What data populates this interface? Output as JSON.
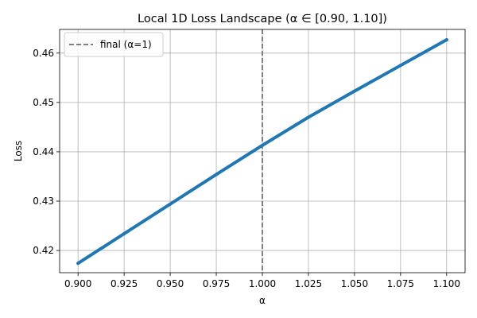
{
  "chart_data": {
    "type": "line",
    "title": "Local 1D Loss Landscape (α ∈ [0.90, 1.10])",
    "xlabel": "α",
    "ylabel": "Loss",
    "xlim": [
      0.89,
      1.11
    ],
    "ylim": [
      0.4155,
      0.4648
    ],
    "grid": true,
    "legend_position": "top-left",
    "x_ticks": [
      0.9,
      0.925,
      0.95,
      0.975,
      1.0,
      1.025,
      1.05,
      1.075,
      1.1
    ],
    "x_tick_labels": [
      "0.900",
      "0.925",
      "0.950",
      "0.975",
      "1.000",
      "1.025",
      "1.050",
      "1.075",
      "1.100"
    ],
    "y_ticks": [
      0.42,
      0.43,
      0.44,
      0.45,
      0.46
    ],
    "y_tick_labels": [
      "0.42",
      "0.43",
      "0.44",
      "0.45",
      "0.46"
    ],
    "series": [
      {
        "color": "#1f77b4",
        "style": "solid",
        "x": [
          0.9,
          0.925,
          0.95,
          0.975,
          1.0,
          1.025,
          1.05,
          1.075,
          1.1
        ],
        "y": [
          0.4174,
          0.4234,
          0.4294,
          0.4354,
          0.4413,
          0.447,
          0.4523,
          0.4575,
          0.4627
        ]
      }
    ],
    "reference_lines": [
      {
        "name": "final (α=1)",
        "orientation": "vertical",
        "x": 1.0,
        "color": "#808080",
        "style": "dashed"
      }
    ]
  }
}
